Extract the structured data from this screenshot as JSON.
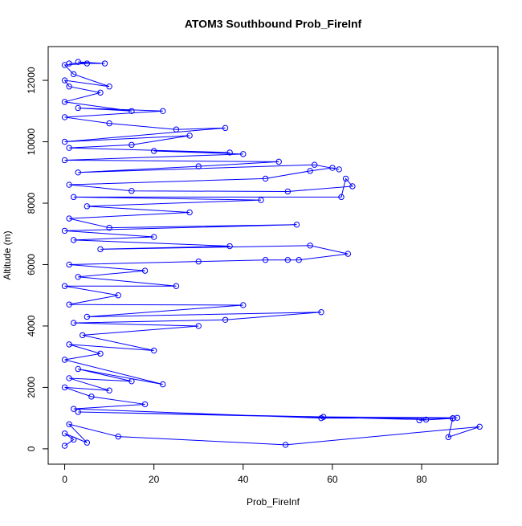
{
  "chart_data": {
    "type": "line",
    "title": "ATOM3 Southbound Prob_FireInf",
    "x_label": "Prob_FireInf",
    "y_label": "Altitude (m)",
    "color": "#0000ff",
    "markers": true,
    "x": [
      0,
      2,
      0,
      5,
      1,
      12,
      49.5,
      93,
      86,
      87,
      88,
      58,
      3,
      81,
      79.5,
      87,
      57.5,
      2,
      18,
      6,
      0,
      10,
      1,
      15,
      3,
      22,
      0,
      8,
      1,
      20,
      4,
      30,
      2,
      36,
      57.5,
      5,
      40,
      1,
      12,
      0,
      25,
      3,
      18,
      1,
      30,
      45,
      50,
      52.5,
      63.5,
      55,
      8,
      37,
      2,
      20,
      0,
      52,
      10,
      1,
      28,
      5,
      44,
      2,
      62,
      63,
      64.5,
      50,
      15,
      1,
      45,
      55,
      60,
      61.5,
      56,
      3,
      30,
      48,
      0,
      40,
      20,
      37,
      1,
      15,
      28,
      0,
      36,
      25,
      10,
      0,
      22,
      3,
      15,
      0,
      8,
      1,
      0,
      10,
      2,
      0,
      5,
      3,
      9,
      1
    ],
    "values": [
      100,
      300,
      500,
      200,
      800,
      400,
      130,
      720,
      380,
      1000,
      1010,
      1040,
      1200,
      950,
      930,
      990,
      1000,
      1300,
      1450,
      1700,
      2000,
      1900,
      2300,
      2200,
      2600,
      2100,
      2900,
      3100,
      3400,
      3200,
      3700,
      4000,
      4100,
      4200,
      4450,
      4300,
      4680,
      4700,
      5000,
      5300,
      5300,
      5600,
      5800,
      6000,
      6100,
      6150,
      6150,
      6150,
      6350,
      6620,
      6500,
      6600,
      6800,
      6900,
      7100,
      7300,
      7200,
      7500,
      7700,
      7900,
      8100,
      8200,
      8200,
      8800,
      8550,
      8380,
      8400,
      8600,
      8800,
      9050,
      9150,
      9100,
      9250,
      9000,
      9200,
      9350,
      9400,
      9600,
      9700,
      9650,
      9800,
      9900,
      10200,
      10000,
      10450,
      10400,
      10600,
      10800,
      11000,
      11100,
      11000,
      11300,
      11600,
      11800,
      12000,
      11800,
      12200,
      12500,
      12550,
      12600,
      12550,
      12550
    ],
    "xlim": [
      -3.7,
      97.1
    ],
    "ylim": [
      -500,
      13100
    ],
    "xticks": [
      0,
      20,
      40,
      60,
      80
    ],
    "yticks": [
      0,
      2000,
      4000,
      6000,
      8000,
      10000,
      12000
    ]
  }
}
